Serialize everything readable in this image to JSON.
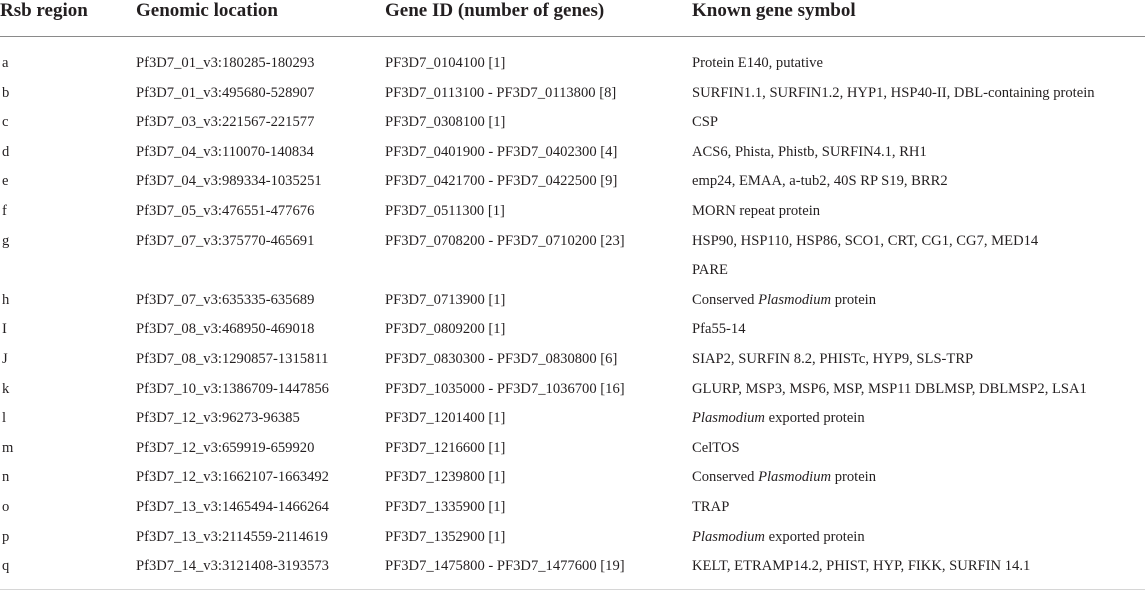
{
  "table": {
    "headers": [
      "Rsb region",
      "Genomic location",
      "Gene ID (number of genes)",
      "Known gene symbol"
    ],
    "rows": [
      {
        "region": "a",
        "location": "Pf3D7_01_v3:180285-180293",
        "gene_id": "PF3D7_0104100 [1]",
        "symbol": [
          {
            "t": "Protein E140, putative"
          }
        ]
      },
      {
        "region": "b",
        "location": "Pf3D7_01_v3:495680-528907",
        "gene_id": "PF3D7_0113100 - PF3D7_0113800 [8]",
        "symbol": [
          {
            "t": "SURFIN1.1, SURFIN1.2, HYP1, HSP40-II, DBL-containing protein"
          }
        ]
      },
      {
        "region": "c",
        "location": "Pf3D7_03_v3:221567-221577",
        "gene_id": "PF3D7_0308100 [1]",
        "symbol": [
          {
            "t": "CSP"
          }
        ]
      },
      {
        "region": "d",
        "location": "Pf3D7_04_v3:110070-140834",
        "gene_id": "PF3D7_0401900 - PF3D7_0402300 [4]",
        "symbol": [
          {
            "t": "ACS6, Phista, Phistb, SURFIN4.1, RH1"
          }
        ]
      },
      {
        "region": "e",
        "location": "Pf3D7_04_v3:989334-1035251",
        "gene_id": "PF3D7_0421700 - PF3D7_0422500 [9]",
        "symbol": [
          {
            "t": "emp24, EMAA, a-tub2, 40S RP S19, BRR2"
          }
        ]
      },
      {
        "region": "f",
        "location": "Pf3D7_05_v3:476551-477676",
        "gene_id": "PF3D7_0511300 [1]",
        "symbol": [
          {
            "t": "MORN repeat protein"
          }
        ]
      },
      {
        "region": "g",
        "location": "Pf3D7_07_v3:375770-465691",
        "gene_id": "PF3D7_0708200 - PF3D7_0710200 [23]",
        "symbol": [
          {
            "t": "HSP90, HSP110, HSP86, SCO1, CRT, CG1, CG7, MED14"
          }
        ]
      },
      {
        "region": "",
        "location": "",
        "gene_id": "",
        "symbol": [
          {
            "t": "PARE"
          }
        ]
      },
      {
        "region": "h",
        "location": "Pf3D7_07_v3:635335-635689",
        "gene_id": "PF3D7_0713900 [1]",
        "symbol": [
          {
            "t": "Conserved "
          },
          {
            "t": "Plasmodium",
            "i": true
          },
          {
            "t": " protein"
          }
        ]
      },
      {
        "region": "I",
        "location": "Pf3D7_08_v3:468950-469018",
        "gene_id": "PF3D7_0809200 [1]",
        "symbol": [
          {
            "t": "Pfa55-14"
          }
        ]
      },
      {
        "region": "J",
        "location": "Pf3D7_08_v3:1290857-1315811",
        "gene_id": "PF3D7_0830300 - PF3D7_0830800 [6]",
        "symbol": [
          {
            "t": "SIAP2, SURFIN 8.2, PHISTc, HYP9, SLS-TRP"
          }
        ]
      },
      {
        "region": "k",
        "location": "Pf3D7_10_v3:1386709-1447856",
        "gene_id": "PF3D7_1035000 - PF3D7_1036700 [16]",
        "symbol": [
          {
            "t": "GLURP, MSP3, MSP6, MSP, MSP11 DBLMSP, DBLMSP2, LSA1"
          }
        ]
      },
      {
        "region": "l",
        "location": "Pf3D7_12_v3:96273-96385",
        "gene_id": "PF3D7_1201400 [1]",
        "symbol": [
          {
            "t": "Plasmodium",
            "i": true
          },
          {
            "t": " exported protein"
          }
        ]
      },
      {
        "region": "m",
        "location": "Pf3D7_12_v3:659919-659920",
        "gene_id": "PF3D7_1216600 [1]",
        "symbol": [
          {
            "t": "CelTOS"
          }
        ]
      },
      {
        "region": "n",
        "location": "Pf3D7_12_v3:1662107-1663492",
        "gene_id": "PF3D7_1239800 [1]",
        "symbol": [
          {
            "t": "Conserved "
          },
          {
            "t": "Plasmodium",
            "i": true
          },
          {
            "t": " protein"
          }
        ]
      },
      {
        "region": "o",
        "location": "Pf3D7_13_v3:1465494-1466264",
        "gene_id": "PF3D7_1335900 [1]",
        "symbol": [
          {
            "t": "TRAP"
          }
        ]
      },
      {
        "region": "p",
        "location": "Pf3D7_13_v3:2114559-2114619",
        "gene_id": "PF3D7_1352900 [1]",
        "symbol": [
          {
            "t": "Plasmodium",
            "i": true
          },
          {
            "t": " exported protein"
          }
        ]
      },
      {
        "region": "q",
        "location": "Pf3D7_14_v3:3121408-3193573",
        "gene_id": "PF3D7_1475800 - PF3D7_1477600 [19]",
        "symbol": [
          {
            "t": "KELT, ETRAMP14.2, PHIST, HYP, FIKK, SURFIN 14.1"
          }
        ]
      }
    ]
  }
}
